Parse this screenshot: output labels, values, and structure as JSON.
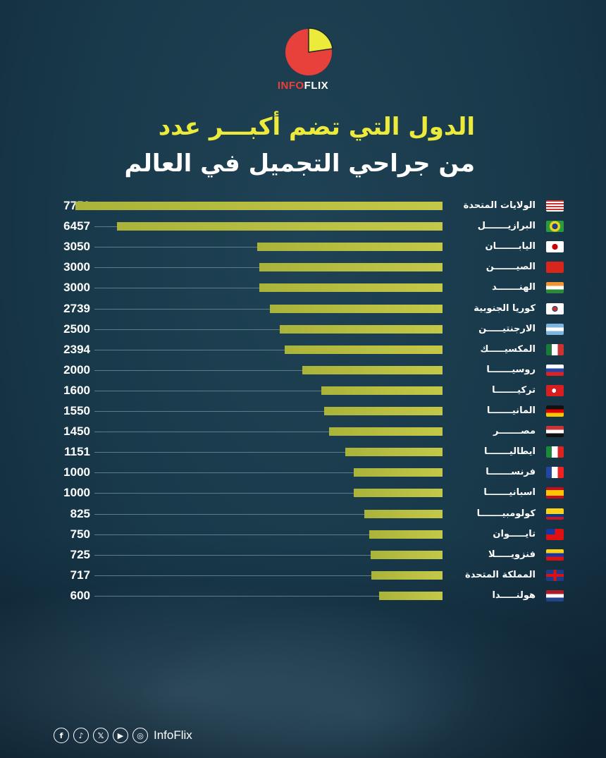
{
  "brand": {
    "part1": "INFO",
    "part2": "FLIX"
  },
  "title": {
    "line1": "الدول التي تضم أكبـــر عدد",
    "line2": "من جراحي التجميل في العالم"
  },
  "colors": {
    "background": "#18394a",
    "bar": "#b8bd40",
    "title_accent": "#ecea3a",
    "logo_red": "#e8403a",
    "logo_yellow": "#ecea3a"
  },
  "chart_data": {
    "type": "bar",
    "orientation": "horizontal",
    "title": "الدول التي تضم أكبـــر عدد من جراحي التجميل في العالم",
    "categories": [
      "الولايات المتحدة",
      "البرازيـــــــل",
      "اليابـــــــان",
      "الصيـــــــن",
      "الهنـــــــد",
      "كوريا الجنوبية",
      "الارجنتيـــــن",
      "المكسيـــــك",
      "روسيـــــــا",
      "تركيـــــــا",
      "المانيـــــــا",
      "مصـــــــر",
      "ايطاليـــــــا",
      "فرنســـــــا",
      "اسبانيـــــــا",
      "كولومبيـــــــا",
      "تايـــــوان",
      "فنزويـــــلا",
      "المملكة المتحدة",
      "هولنـــــدا"
    ],
    "flags": [
      "us",
      "br",
      "jp",
      "cn",
      "in",
      "kr",
      "ar",
      "mx",
      "ru",
      "tr",
      "de",
      "eg",
      "it",
      "fr",
      "es",
      "co",
      "tw",
      "ve",
      "gb",
      "nl"
    ],
    "values": [
      7750,
      6457,
      3050,
      3000,
      3000,
      2739,
      2500,
      2394,
      2000,
      1600,
      1550,
      1450,
      1151,
      1000,
      1000,
      825,
      750,
      725,
      717,
      600
    ],
    "xlabel": "",
    "ylabel": ""
  },
  "footer": {
    "icons": [
      "facebook-icon",
      "tiktok-icon",
      "x-icon",
      "youtube-icon",
      "instagram-icon"
    ],
    "icon_glyphs": [
      "f",
      "♪",
      "𝕏",
      "▶",
      "◎"
    ],
    "handle": "InfoFlix"
  }
}
